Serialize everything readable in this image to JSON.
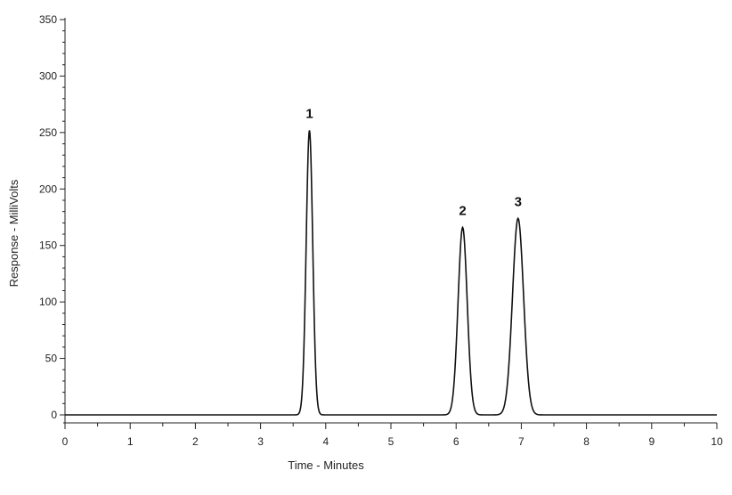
{
  "chart_data": {
    "type": "line",
    "xlabel": "Time - Minutes",
    "ylabel": "Response - MilliVolts",
    "xlim": [
      0,
      10
    ],
    "ylim": [
      0,
      350
    ],
    "x_ticks": [
      "0",
      "1",
      "2",
      "3",
      "4",
      "5",
      "6",
      "7",
      "8",
      "9",
      "10"
    ],
    "y_ticks": [
      "0",
      "50",
      "100",
      "150",
      "200",
      "250",
      "300",
      "350"
    ],
    "grid": false,
    "baseline": 0,
    "peaks": [
      {
        "label": "1",
        "x": 3.75,
        "y": 252,
        "width": 0.05
      },
      {
        "label": "2",
        "x": 6.1,
        "y": 166,
        "width": 0.07
      },
      {
        "label": "3",
        "x": 6.95,
        "y": 174,
        "width": 0.085
      }
    ]
  }
}
